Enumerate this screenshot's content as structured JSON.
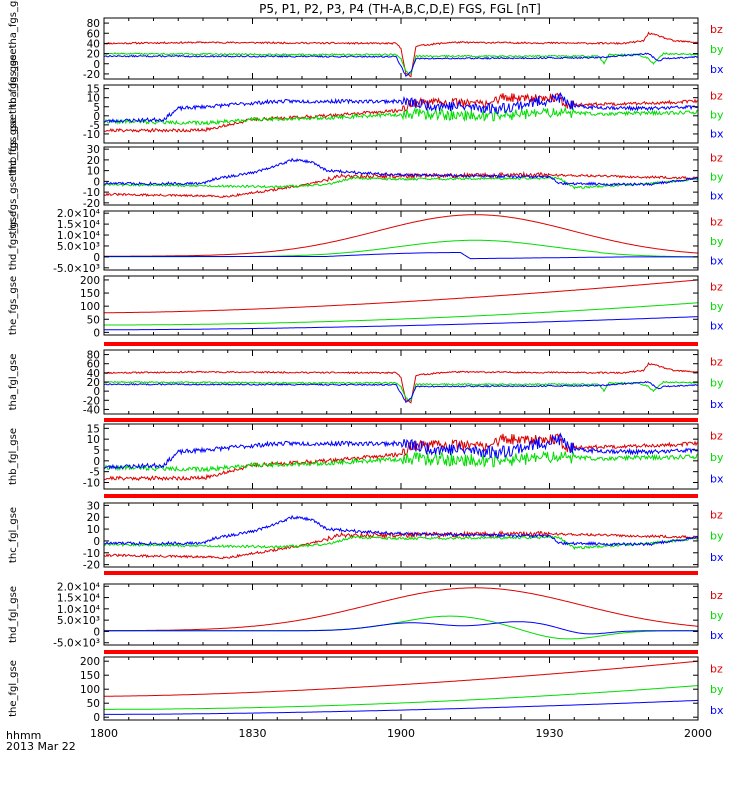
{
  "title": "P5, P1, P2, P3, P4 (TH-A,B,C,D,E) FGS, FGL [nT]",
  "footer": {
    "unit_label": "hhmm",
    "date_label": "2013 Mar 22"
  },
  "colors": {
    "bx": "#0000ff",
    "by": "#00dd00",
    "bz": "#dd0000",
    "flag": "#ff0000",
    "axis": "#000000"
  },
  "chart_data": {
    "type": "line",
    "x_ticks": [
      "1800",
      "1830",
      "1900",
      "1930",
      "2000"
    ],
    "xlim_hhmm": [
      1800,
      2000
    ],
    "legend_labels": [
      "bz",
      "by",
      "bx"
    ],
    "panels": [
      {
        "ylabel": "tha_fgs_gsetha_fgs_gse",
        "ylim": [
          -30,
          90
        ],
        "ticks": [
          80,
          60,
          40,
          20,
          0,
          -20
        ],
        "tick_labels": [
          "80",
          "60",
          "40",
          "20",
          "0",
          "-20"
        ],
        "kind": "A"
      },
      {
        "ylabel": "thb_fgs_gsethb_fgs_gse",
        "ylim": [
          -15,
          17
        ],
        "ticks": [
          15,
          10,
          5,
          0,
          -5,
          -10
        ],
        "tick_labels": [
          "15",
          "10",
          "5",
          "0",
          "-5",
          "-10"
        ],
        "kind": "B"
      },
      {
        "ylabel": "thc_fgs_gsethc_fgs_gse",
        "ylim": [
          -22,
          32
        ],
        "ticks": [
          30,
          20,
          10,
          0,
          -10,
          -20
        ],
        "tick_labels": [
          "30",
          "20",
          "10",
          "0",
          "-10",
          "-20"
        ],
        "kind": "C"
      },
      {
        "ylabel": "thd_fgs_gse",
        "ylim": [
          -6000,
          21000
        ],
        "ticks": [
          20000,
          15000,
          10000,
          5000,
          0,
          -5000
        ],
        "tick_labels": [
          "2.0×10⁴",
          "1.5×10⁴",
          "1.0×10⁴",
          "5.0×10³",
          "0",
          "-5.0×10³"
        ],
        "kind": "D"
      },
      {
        "ylabel": "the_fgs_gse",
        "ylim": [
          -10,
          215
        ],
        "ticks": [
          200,
          150,
          100,
          50,
          0
        ],
        "tick_labels": [
          "200",
          "150",
          "100",
          "50",
          "0"
        ],
        "kind": "E"
      },
      {
        "ylabel": "tha_fgl_gse",
        "ylim": [
          -50,
          90
        ],
        "ticks": [
          80,
          60,
          40,
          20,
          0,
          -20,
          -40
        ],
        "tick_labels": [
          "80",
          "60",
          "40",
          "20",
          "0",
          "-20",
          "-40"
        ],
        "kind": "A"
      },
      {
        "ylabel": "thb_fgl_gse",
        "ylim": [
          -13,
          17
        ],
        "ticks": [
          15,
          10,
          5,
          0,
          -5,
          -10
        ],
        "tick_labels": [
          "15",
          "10",
          "5",
          "0",
          "-5",
          "-10"
        ],
        "kind": "B"
      },
      {
        "ylabel": "thc_fgl_gse",
        "ylim": [
          -22,
          32
        ],
        "ticks": [
          30,
          20,
          10,
          0,
          -10,
          -20
        ],
        "tick_labels": [
          "30",
          "20",
          "10",
          "0",
          "-10",
          "-20"
        ],
        "kind": "C"
      },
      {
        "ylabel": "thd_fgl_gse",
        "ylim": [
          -6000,
          21000
        ],
        "ticks": [
          20000,
          15000,
          10000,
          5000,
          0,
          -5000
        ],
        "tick_labels": [
          "2.0×10⁴",
          "1.5×10⁴",
          "1.0×10⁴",
          "5.0×10³",
          "0",
          "-5.0×10³"
        ],
        "kind": "D2"
      },
      {
        "ylabel": "the_fgl_gse",
        "ylim": [
          -10,
          215
        ],
        "ticks": [
          200,
          150,
          100,
          50,
          0
        ],
        "tick_labels": [
          "200",
          "150",
          "100",
          "50",
          "0"
        ],
        "kind": "E"
      }
    ]
  }
}
